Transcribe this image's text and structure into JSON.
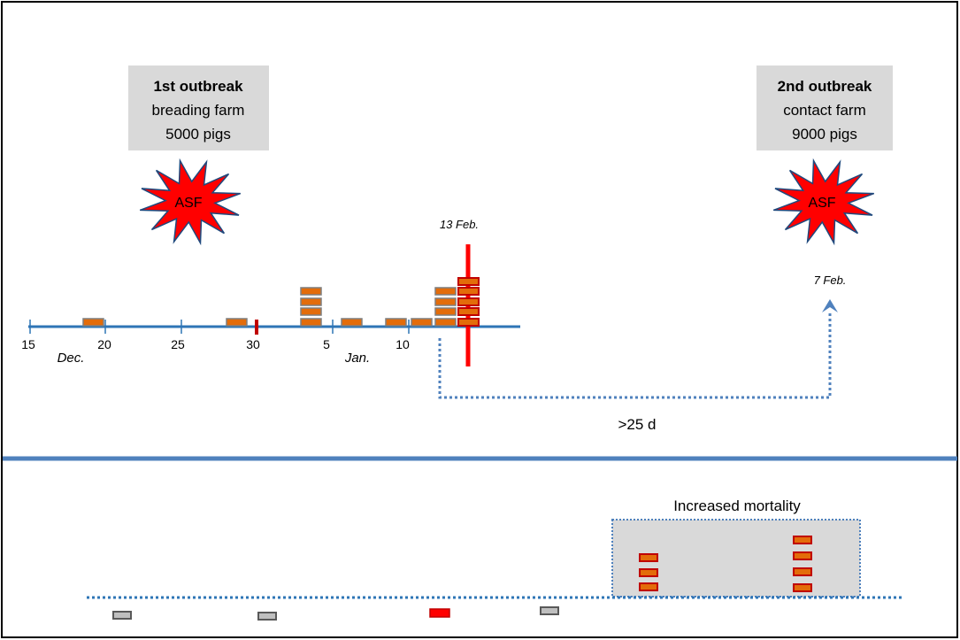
{
  "outbreak1": {
    "heading": "1st outbreak",
    "line2": "breading farm",
    "line3": "5000 pigs",
    "badge": "ASF"
  },
  "outbreak2": {
    "heading": "2nd outbreak",
    "line2": "contact farm",
    "line3": "9000 pigs",
    "badge": "ASF"
  },
  "timeline": {
    "ticks": [
      "15",
      "20",
      "25",
      "30",
      "5",
      "10"
    ],
    "month_dec": "Dec.",
    "month_jan": "Jan.",
    "date_13feb": "13 Feb.",
    "date_7feb": "7 Feb.",
    "interval": ">25 d"
  },
  "lower": {
    "box_label": "Increased mortality"
  },
  "colors": {
    "case_fill": "#e36c0a",
    "case_fill_red": "#ff0000",
    "case_border_red": "#c00000",
    "gray_fill": "#bfbfbf",
    "axis_blue": "#2e75b6",
    "divider_blue": "#4f81bd",
    "dotted_blue": "#4f81bd",
    "label_box": "#d9d9d9",
    "star_red": "#ff0000",
    "star_border": "#1f497d"
  }
}
